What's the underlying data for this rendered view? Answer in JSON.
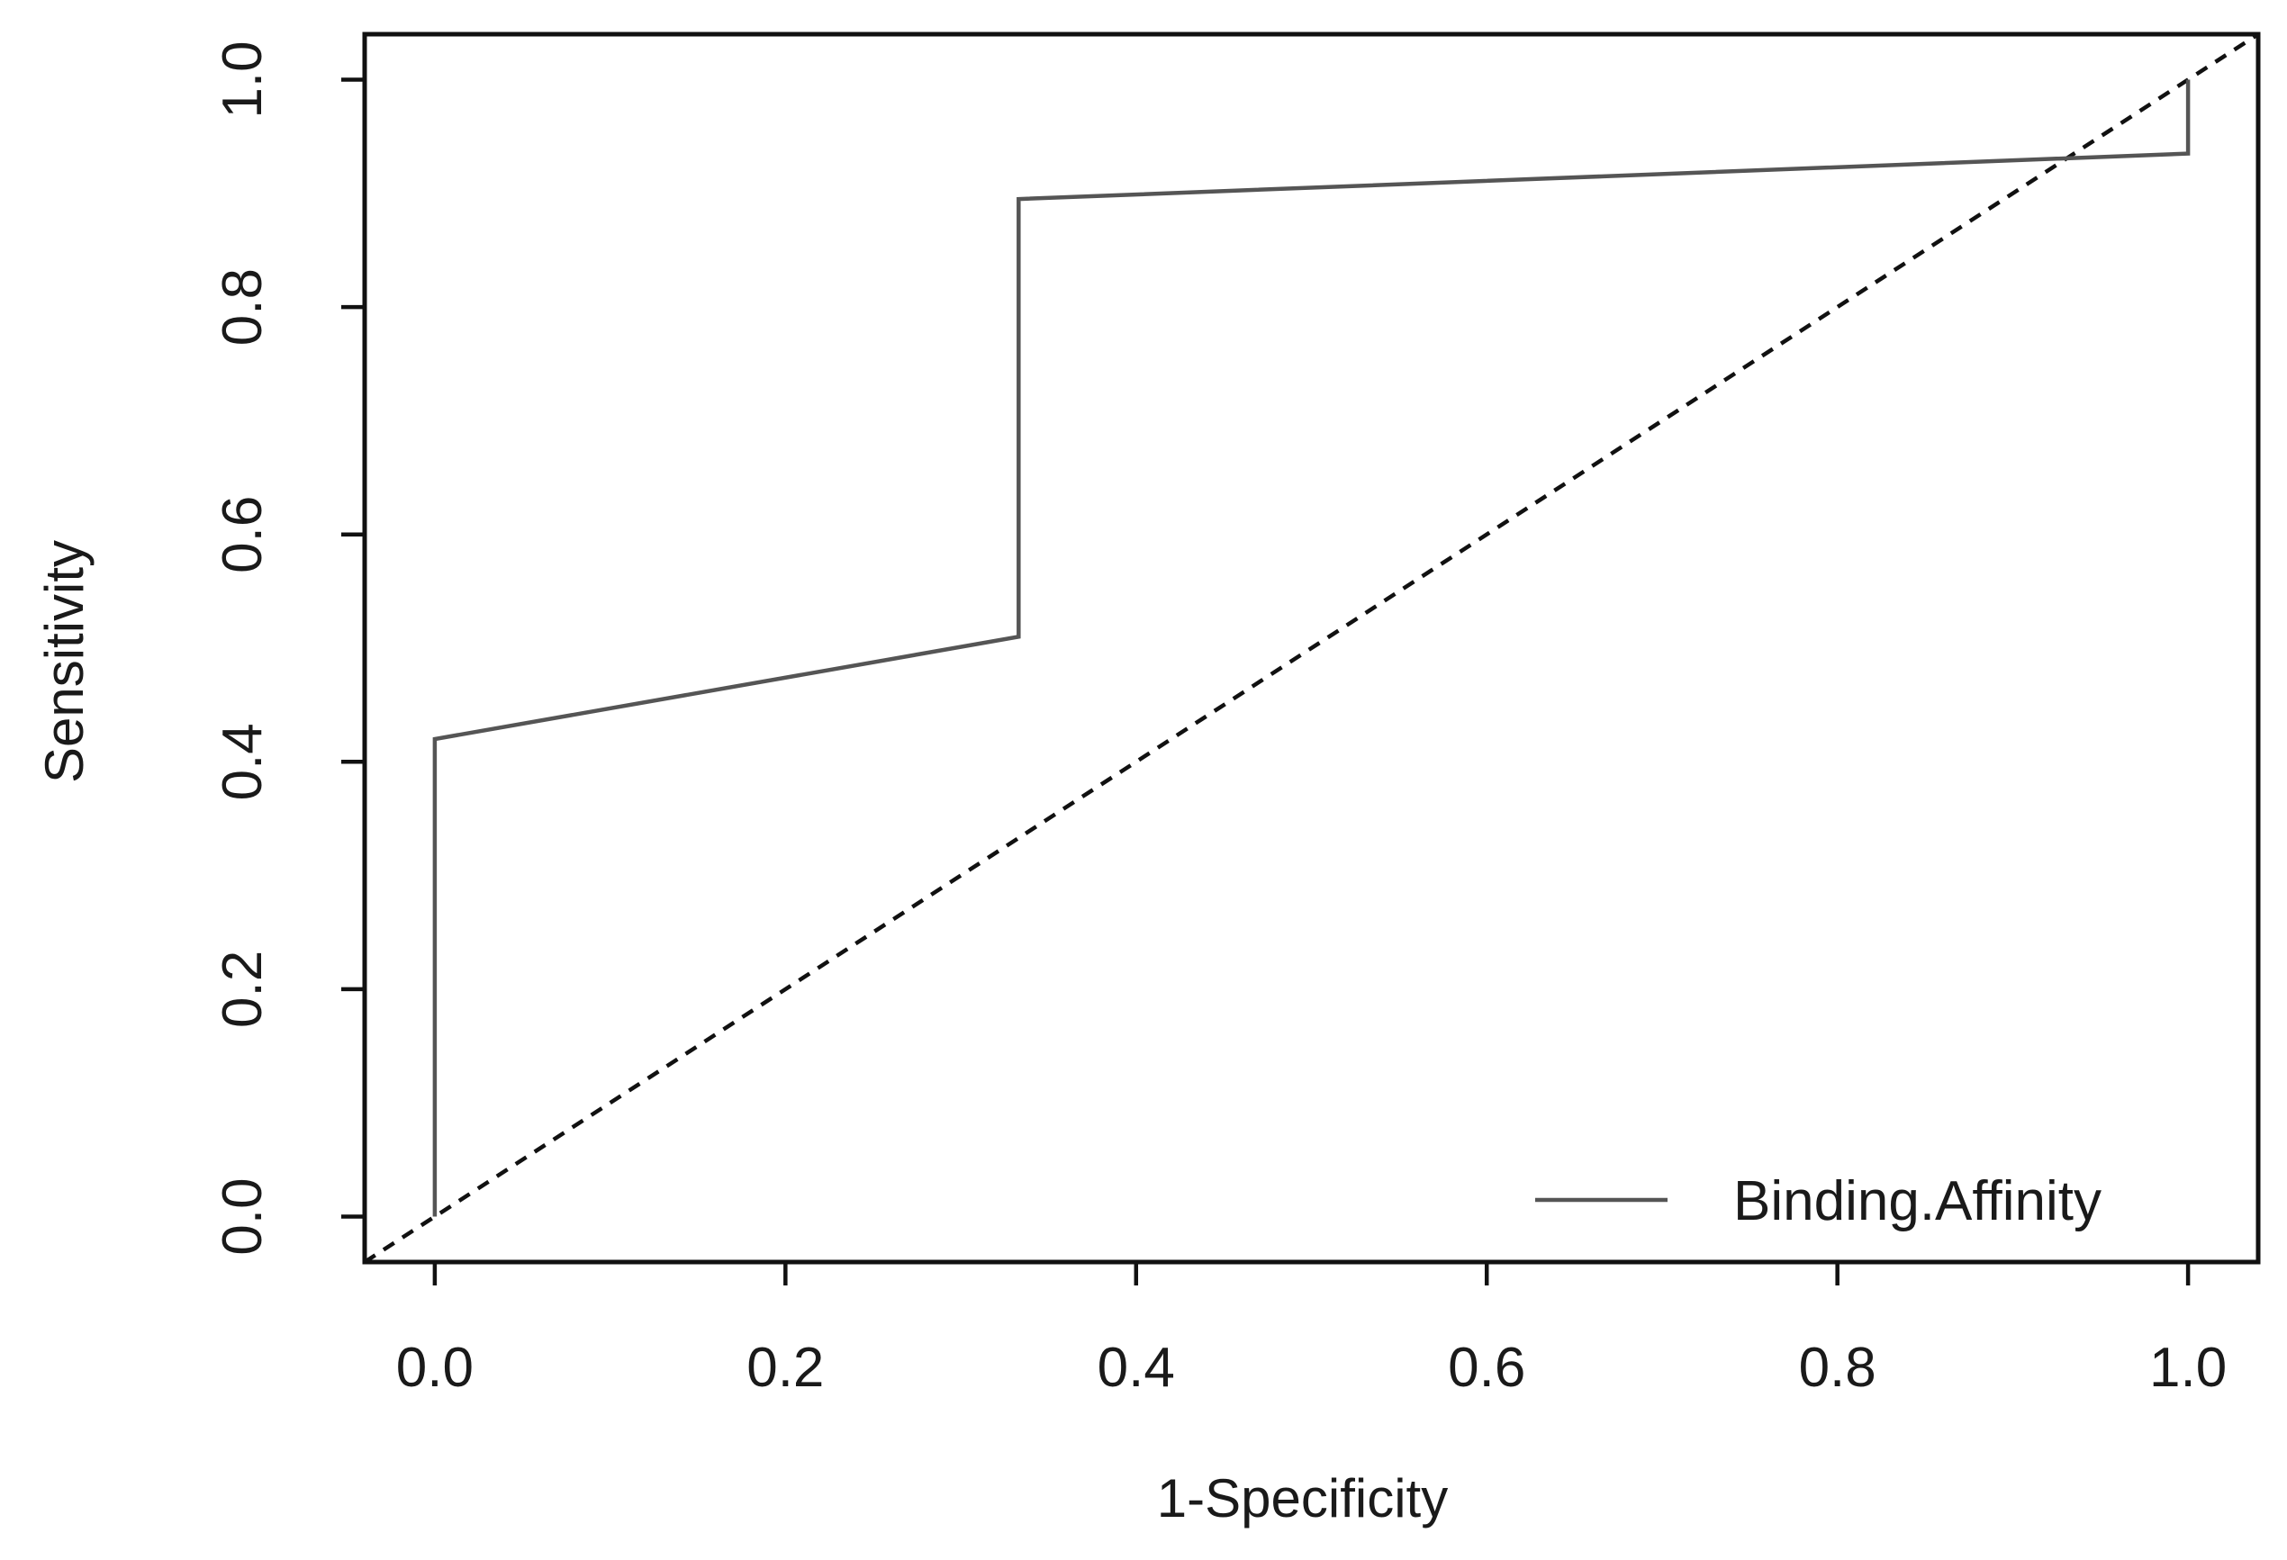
{
  "chart_data": {
    "type": "line",
    "title": "",
    "xlabel": "1-Specificity",
    "ylabel": "Sensitivity",
    "xlim": [
      -0.04,
      1.04
    ],
    "ylim": [
      -0.04,
      1.04
    ],
    "x_ticks": [
      0.0,
      0.2,
      0.4,
      0.6,
      0.8,
      1.0
    ],
    "x_tick_labels": [
      "0.0",
      "0.2",
      "0.4",
      "0.6",
      "0.8",
      "1.0"
    ],
    "y_ticks": [
      0.0,
      0.2,
      0.4,
      0.6,
      0.8,
      1.0
    ],
    "y_tick_labels": [
      "0.0",
      "0.2",
      "0.4",
      "0.6",
      "0.8",
      "1.0"
    ],
    "grid": false,
    "legend": "bottom-right",
    "series": [
      {
        "name": "Binding.Affinity",
        "color": "#555555",
        "style": "solid",
        "x": [
          0.0,
          0.0,
          0.333,
          0.333,
          1.0,
          1.0
        ],
        "y": [
          0.0,
          0.42,
          0.51,
          0.895,
          0.935,
          1.0
        ]
      }
    ],
    "reference_line": {
      "color": "#111111",
      "style": "dashed",
      "x": [
        -0.04,
        1.04
      ],
      "y": [
        -0.04,
        1.04
      ]
    }
  }
}
